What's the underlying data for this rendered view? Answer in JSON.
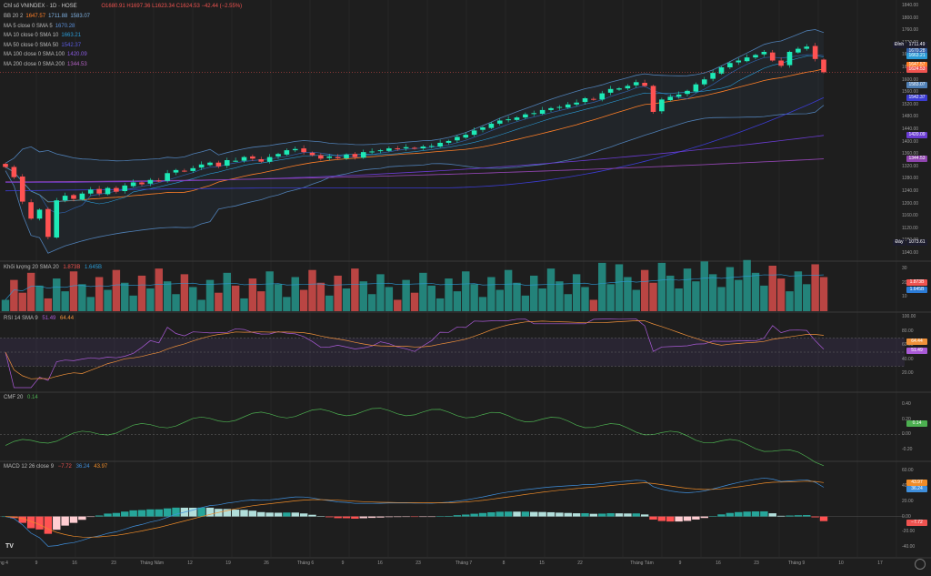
{
  "colors": {
    "bg": "#1e1e1e",
    "up": "#26a69a",
    "down": "#ef5350",
    "up_bright": "#1de9b6",
    "down_bright": "#ff5252",
    "bb": "#4f7fb5",
    "ma5": "#2f5fa8",
    "ma10": "#2b9bd6",
    "ma50": "#ff7f27",
    "ma100": "#3c3cd2",
    "ma200": "#8e44ad",
    "rsi": "#a95ad6",
    "rsi_sma": "#f0913a",
    "cmf": "#4caf50",
    "macd": "#3f8fdc",
    "signal": "#f08c28",
    "grid": "#2c2c2c"
  },
  "header": {
    "title": "Chỉ số VNINDEX · 1D · HOSE",
    "ohlc": "O1680.91  H1697.36  L1623.34  C1624.53  −42.44 (−2.55%)",
    "indicators": [
      {
        "name": "BB 20 2",
        "vals": [
          "1647.57",
          "1711.88",
          "1583.07"
        ],
        "colors": [
          "#ff7f27",
          "#7fb0e0",
          "#7fb0e0"
        ]
      },
      {
        "name": "MA 5 close 0 SMA 5",
        "vals": [
          "1670.28"
        ],
        "colors": [
          "#5a8fd8"
        ]
      },
      {
        "name": "MA 10 close 0 SMA 10",
        "vals": [
          "1663.21"
        ],
        "colors": [
          "#2b9bd6"
        ]
      },
      {
        "name": "MA 50 close 0 SMA 50",
        "vals": [
          "1542.37"
        ],
        "colors": [
          "#5a5ae0"
        ]
      },
      {
        "name": "MA 100 close 0 SMA 100",
        "vals": [
          "1420.09"
        ],
        "colors": [
          "#8a5ae0"
        ]
      },
      {
        "name": "MA 200 close 0 SMA 200",
        "vals": [
          "1344.53"
        ],
        "colors": [
          "#b060c0"
        ]
      }
    ]
  },
  "price_axis": {
    "ticks": [
      "1840.00",
      "1800.00",
      "1760.00",
      "1720.00",
      "1680.00",
      "1640.00",
      "1600.00",
      "1560.00",
      "1520.00",
      "1480.00",
      "1440.00",
      "1400.00",
      "1360.00",
      "1320.00",
      "1280.00",
      "1240.00",
      "1200.00",
      "1160.00",
      "1120.00",
      "1080.00",
      "1040.00"
    ],
    "badges": [
      {
        "text": "1711.88",
        "bg": "#4f7fb5",
        "v": 1711.88
      },
      {
        "text": "1711.49",
        "bg": "#1c1c2e",
        "v": 1711.49,
        "side": "Đỉnh"
      },
      {
        "text": "1670.28",
        "bg": "#2f5fa8",
        "v": 1692
      },
      {
        "text": "1663.21",
        "bg": "#2b9bd6",
        "v": 1676
      },
      {
        "text": "1647.57",
        "bg": "#ff7f27",
        "v": 1647.57
      },
      {
        "text": "1624.53",
        "bg": "#ef5350",
        "v": 1632
      },
      {
        "text": "1583.07",
        "bg": "#4f7fb5",
        "v": 1583.07
      },
      {
        "text": "1542.37",
        "bg": "#3c3cd2",
        "v": 1542.37
      },
      {
        "text": "1420.09",
        "bg": "#6a3cd2",
        "v": 1420.09
      },
      {
        "text": "1344.53",
        "bg": "#8e44ad",
        "v": 1344.53
      },
      {
        "text": "1073.61",
        "bg": "#1c1c2e",
        "v": 1073.61,
        "side": "Đáy"
      }
    ]
  },
  "volume_pane": {
    "label": "Khối lượng 20 SMA 20",
    "vals": [
      "1.873B",
      "1.645B"
    ],
    "ticks": [
      "30",
      "20",
      "10"
    ],
    "badges": [
      {
        "text": "1.873B",
        "bg": "#ef5350"
      },
      {
        "text": "1.645B",
        "bg": "#2b7bd6"
      }
    ]
  },
  "rsi_pane": {
    "label": "RSI 14 SMA 9",
    "vals": [
      "51.49",
      "64.44"
    ],
    "ticks": [
      "100.00",
      "80.00",
      "60.00",
      "40.00",
      "20.00"
    ],
    "badges": [
      {
        "text": "64.44",
        "bg": "#f0913a",
        "v": 64.44
      },
      {
        "text": "51.49",
        "bg": "#a95ad6",
        "v": 51.49
      }
    ]
  },
  "cmf_pane": {
    "label": "CMF 20",
    "vals": [
      "0.14"
    ],
    "ticks": [
      "0.40",
      "0.20",
      "0.00",
      "-0.20"
    ],
    "badges": [
      {
        "text": "0.14",
        "bg": "#4caf50",
        "v": 0.14
      }
    ]
  },
  "macd_pane": {
    "label": "MACD 12 26 close 9",
    "vals": [
      "−7.72",
      "36.24",
      "43.97"
    ],
    "ticks": [
      "60.00",
      "40.00",
      "20.00",
      "0.00",
      "-20.00",
      "-40.00"
    ],
    "badges": [
      {
        "text": "43.97",
        "bg": "#f08c28",
        "v": 43.97
      },
      {
        "text": "36.24",
        "bg": "#3f8fdc",
        "v": 36.24
      },
      {
        "text": "−7.72",
        "bg": "#ef5350",
        "v": -7.72
      }
    ]
  },
  "x_axis": {
    "labels": [
      "ng 4",
      "9",
      "16",
      "23",
      "Tháng Năm",
      "12",
      "19",
      "26",
      "Tháng 6",
      "9",
      "16",
      "23",
      "Tháng 7",
      "8",
      "15",
      "22",
      "Tháng Tám",
      "9",
      "16",
      "23",
      "Tháng 9",
      "10",
      "17"
    ]
  },
  "logo": "TV",
  "chart_data": {
    "type": "candlestick",
    "price_ylim": [
      1040,
      1840
    ],
    "closes": [
      1318,
      1285,
      1206,
      1151,
      1180,
      1092,
      1210,
      1225,
      1215,
      1232,
      1245,
      1232,
      1250,
      1238,
      1258,
      1268,
      1262,
      1276,
      1273,
      1298,
      1308,
      1305,
      1314,
      1326,
      1332,
      1320,
      1340,
      1338,
      1350,
      1345,
      1335,
      1350,
      1360,
      1372,
      1376,
      1366,
      1356,
      1345,
      1352,
      1346,
      1358,
      1350,
      1366,
      1368,
      1372,
      1378,
      1376,
      1382,
      1378,
      1384,
      1386,
      1396,
      1402,
      1415,
      1422,
      1436,
      1446,
      1458,
      1468,
      1472,
      1478,
      1488,
      1492,
      1502,
      1508,
      1512,
      1520,
      1526,
      1540,
      1536,
      1556,
      1570,
      1572,
      1580,
      1592,
      1580,
      1496,
      1536,
      1545,
      1552,
      1564,
      1585,
      1601,
      1622,
      1640,
      1654,
      1662,
      1672,
      1680,
      1690,
      1662,
      1645,
      1690,
      1700,
      1707,
      1667,
      1624
    ],
    "volume_ylim": [
      0,
      32
    ],
    "rsi_ylim": [
      0,
      100
    ],
    "cmf_ylim": [
      -0.3,
      0.5
    ],
    "macd_ylim": [
      -48,
      66
    ]
  }
}
